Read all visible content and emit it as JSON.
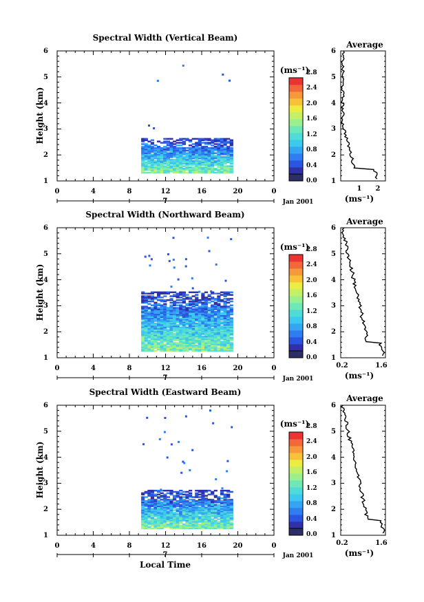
{
  "colors": {
    "scale": [
      "#2e2e66",
      "#3030a8",
      "#2a55e0",
      "#2f7df0",
      "#33a5f2",
      "#3cc9ee",
      "#4fdcd8",
      "#6fe8b8",
      "#9aef8e",
      "#c4f068",
      "#eced42",
      "#f7c23a",
      "#f7983a",
      "#f2683a",
      "#ea3434"
    ]
  },
  "footer": {
    "xaxis_label": "Local Time"
  },
  "chart_data": [
    {
      "type": "heatmap",
      "title": "Spectral Width (Vertical Beam)",
      "ylabel": "Height (km)",
      "xlim": [
        0,
        24
      ],
      "ylim": [
        1,
        6
      ],
      "xticks": [
        "0",
        "4",
        "8",
        "12",
        "16",
        "20",
        "0"
      ],
      "yticks": [
        "1",
        "2",
        "3",
        "4",
        "5",
        "6"
      ],
      "date_marker": "7",
      "date_label": "Jan 2001",
      "colorbar": {
        "unit": "(ms⁻¹)",
        "labels": [
          "0.0",
          "0.4",
          "0.8",
          "1.2",
          "1.6",
          "2.0",
          "2.4",
          "2.8"
        ]
      },
      "data_extent": {
        "x": [
          9.3,
          19.3
        ],
        "y": [
          1.3,
          2.6
        ]
      },
      "average": {
        "title": "Average",
        "xlabel": "(ms⁻¹)",
        "xticks": [
          "1",
          "2"
        ],
        "xlim": [
          0.25,
          2.5
        ],
        "yticks": [
          "1",
          "2",
          "3",
          "4",
          "5",
          "6"
        ]
      }
    },
    {
      "type": "heatmap",
      "title": "Spectral Width (Northward Beam)",
      "ylabel": "Height (km)",
      "xlim": [
        0,
        24
      ],
      "ylim": [
        1,
        6
      ],
      "xticks": [
        "0",
        "4",
        "8",
        "12",
        "16",
        "20",
        "0"
      ],
      "yticks": [
        "1",
        "2",
        "3",
        "4",
        "5",
        "6"
      ],
      "date_marker": "7",
      "date_label": "Jan 2001",
      "colorbar": {
        "unit": "(ms⁻¹)",
        "labels": [
          "0.0",
          "0.4",
          "0.8",
          "1.2",
          "1.6",
          "2.0",
          "2.4",
          "2.8"
        ]
      },
      "data_extent": {
        "x": [
          9.3,
          19.3
        ],
        "y": [
          1.25,
          3.5
        ]
      },
      "average": {
        "title": "Average",
        "xlabel": "(ms⁻¹)",
        "xticks": [
          "0.2",
          "1.6"
        ],
        "xlim": [
          0.2,
          1.6
        ],
        "yticks": [
          "1",
          "2",
          "3",
          "4",
          "5",
          "6"
        ]
      }
    },
    {
      "type": "heatmap",
      "title": "Spectral Width (Eastward Beam)",
      "ylabel": "Height (km)",
      "xlim": [
        0,
        24
      ],
      "ylim": [
        1,
        6
      ],
      "xticks": [
        "0",
        "4",
        "8",
        "12",
        "16",
        "20",
        "0"
      ],
      "yticks": [
        "1",
        "2",
        "3",
        "4",
        "5",
        "6"
      ],
      "date_marker": "7",
      "date_label": "Jan 2001",
      "colorbar": {
        "unit": "(ms⁻¹)",
        "labels": [
          "0.0",
          "0.4",
          "0.8",
          "1.2",
          "1.6",
          "2.0",
          "2.4",
          "2.8"
        ]
      },
      "data_extent": {
        "x": [
          9.3,
          19.3
        ],
        "y": [
          1.25,
          2.7
        ]
      },
      "average": {
        "title": "Average",
        "xlabel": "(ms⁻¹)",
        "xticks": [
          "0.2",
          "1.6"
        ],
        "xlim": [
          0.2,
          1.6
        ],
        "yticks": [
          "1",
          "2",
          "3",
          "4",
          "5",
          "6"
        ]
      }
    }
  ]
}
